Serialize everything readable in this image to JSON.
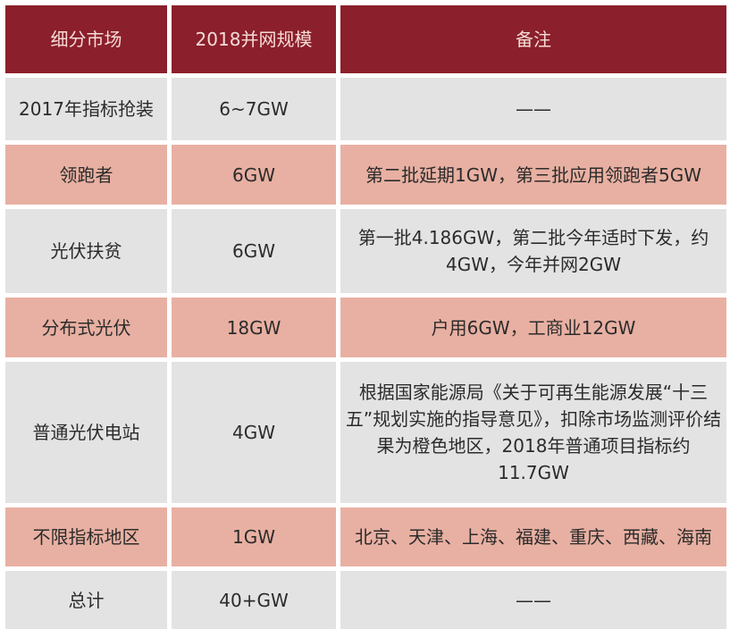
{
  "table": {
    "headers": [
      "细分市场",
      "2018并网规模",
      "备注"
    ],
    "rows": [
      {
        "market": "2017年指标抢装",
        "scale": "6~7GW",
        "note": "——",
        "style": "gray"
      },
      {
        "market": "领跑者",
        "scale": "6GW",
        "note": "第二批延期1GW，第三批应用领跑者5GW",
        "style": "pink"
      },
      {
        "market": "光伏扶贫",
        "scale": "6GW",
        "note": "第一批4.186GW，第二批今年适时下发，约4GW，今年并网2GW",
        "style": "gray"
      },
      {
        "market": "分布式光伏",
        "scale": "18GW",
        "note": "户用6GW，工商业12GW",
        "style": "pink"
      },
      {
        "market": "普通光伏电站",
        "scale": "4GW",
        "note": "根据国家能源局《关于可再生能源发展“十三五”规划实施的指导意见》，扣除市场监测评价结果为橙色地区，2018年普通项目指标约11.7GW",
        "style": "gray"
      },
      {
        "market": "不限指标地区",
        "scale": "1GW",
        "note": "北京、天津、上海、福建、重庆、西藏、海南",
        "style": "pink"
      },
      {
        "market": "总计",
        "scale": "40+GW",
        "note": "——",
        "style": "gray"
      }
    ]
  },
  "colors": {
    "header": "#8b1f2b",
    "gray_row": "#e3e3e3",
    "pink_row": "#e8b0a2"
  }
}
